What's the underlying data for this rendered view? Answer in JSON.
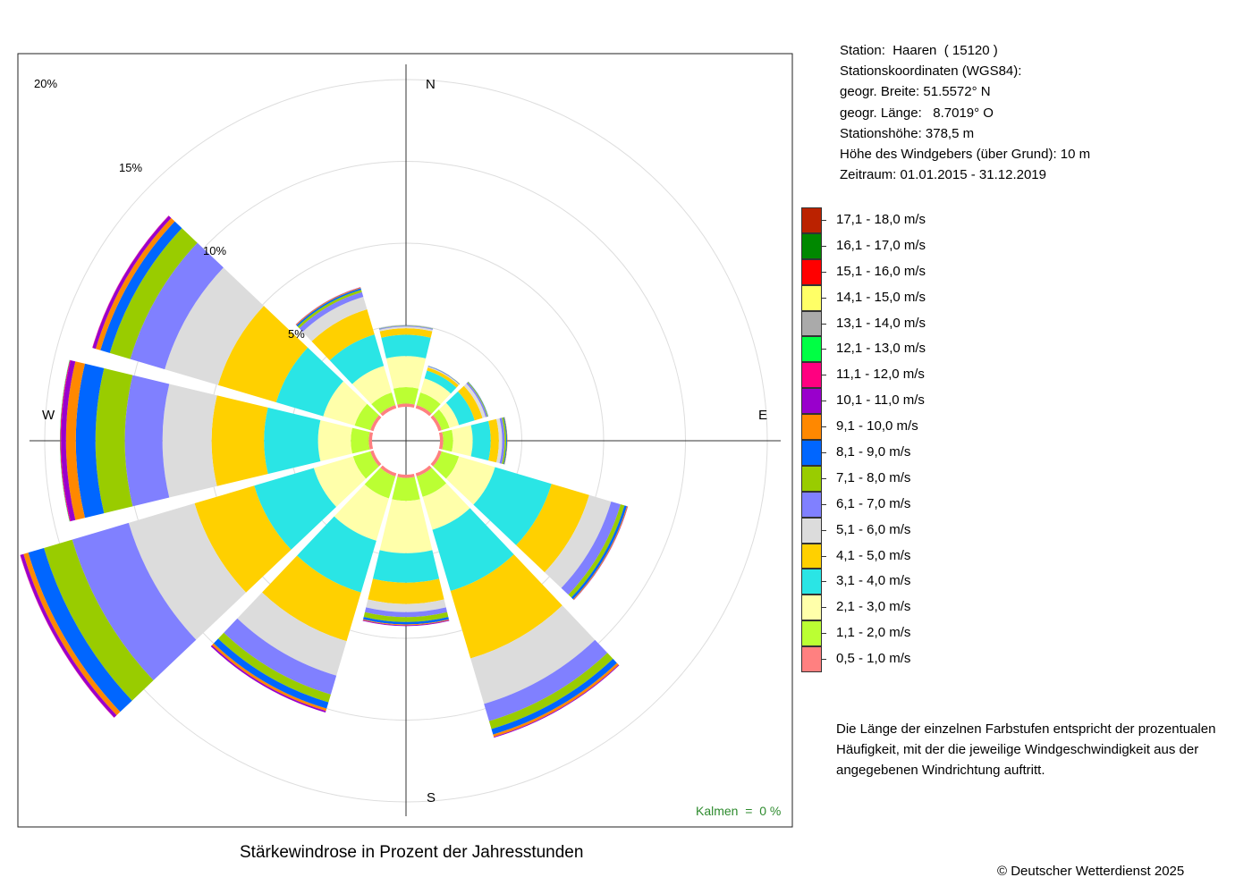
{
  "station": {
    "line1": "Station:  Haaren  ( 15120 )",
    "line2": "Stationskoordinaten (WGS84):",
    "line3": "geogr. Breite: 51.5572° N",
    "line4": "geogr. Länge:   8.7019° O",
    "line5": "Stationshöhe: 378,5 m",
    "line6": "Höhe des Windgebers (über Grund): 10 m",
    "line7": "Zeitraum: 01.01.2015 - 31.12.2019"
  },
  "note": "Die Länge der einzelnen Farbstufen entspricht der prozentualen Häufigkeit, mit der die jeweilige Windgeschwindigkeit aus der angegebenen Windrichtung auftritt.",
  "footer": {
    "caption": "Stärkewindrose in Prozent der Jahresstunden",
    "copyright": "© Deutscher Wetterdienst  2025",
    "calm": "Kalmen  =  0 %"
  },
  "directions": {
    "n": "N",
    "e": "E",
    "s": "S",
    "w": "W"
  },
  "ring_labels": [
    "5%",
    "10%",
    "15%",
    "20%"
  ],
  "chart_data": {
    "type": "windrose",
    "title": "Stärkewindrose in Prozent der Jahresstunden",
    "radial_unit": "%",
    "rings": [
      5,
      10,
      15,
      20
    ],
    "calms_percent": 0,
    "sector_width_deg": 30,
    "directions_deg": [
      0,
      30,
      60,
      90,
      120,
      150,
      180,
      210,
      240,
      270,
      300,
      330
    ],
    "speed_classes": [
      "0,5 - 1,0 m/s",
      "1,1 - 2,0 m/s",
      "2,1 - 3,0 m/s",
      "3,1 - 4,0 m/s",
      "4,1 - 5,0 m/s",
      "5,1 - 6,0 m/s",
      "6,1 - 7,0 m/s",
      "7,1 - 8,0 m/s",
      "8,1 - 9,0 m/s",
      "9,1 - 10,0 m/s",
      "10,1 - 11,0 m/s",
      "11,1 - 12,0 m/s",
      "12,1 - 13,0 m/s",
      "13,1 - 14,0 m/s",
      "14,1 - 15,0 m/s",
      "15,1 - 16,0 m/s",
      "16,1 - 17,0 m/s",
      "17,1 - 18,0 m/s"
    ],
    "colors": [
      "#ff8080",
      "#bbff33",
      "#ffffaa",
      "#2ae5e5",
      "#ffd000",
      "#dcdcdc",
      "#8080ff",
      "#99cc00",
      "#0066ff",
      "#ff8800",
      "#9900cc",
      "#ff0080",
      "#00ff44",
      "#aaaaaa",
      "#ffff66",
      "#ff0000",
      "#008800",
      "#bb2200"
    ],
    "sectors": [
      {
        "dir": 0,
        "values": [
          0.2,
          1.0,
          1.9,
          1.3,
          0.4,
          0.1,
          0.05,
          0.02,
          0.01,
          0,
          0,
          0,
          0,
          0,
          0,
          0,
          0,
          0
        ]
      },
      {
        "dir": 30,
        "values": [
          0.2,
          0.8,
          0.9,
          0.5,
          0.2,
          0.05,
          0.03,
          0.02,
          0.01,
          0,
          0,
          0,
          0,
          0,
          0,
          0,
          0,
          0
        ]
      },
      {
        "dir": 60,
        "values": [
          0.2,
          0.5,
          0.6,
          1.0,
          0.5,
          0.2,
          0.1,
          0.05,
          0.02,
          0,
          0,
          0,
          0,
          0,
          0,
          0,
          0,
          0
        ]
      },
      {
        "dir": 90,
        "values": [
          0.2,
          0.6,
          1.2,
          1.1,
          0.5,
          0.2,
          0.15,
          0.1,
          0.05,
          0.02,
          0,
          0,
          0,
          0,
          0,
          0,
          0,
          0
        ]
      },
      {
        "dir": 120,
        "values": [
          0.2,
          1.1,
          2.3,
          3.6,
          2.4,
          1.4,
          0.6,
          0.25,
          0.15,
          0.05,
          0.02,
          0,
          0,
          0,
          0,
          0,
          0,
          0
        ]
      },
      {
        "dir": 150,
        "values": [
          0.2,
          1.3,
          2.1,
          3.9,
          4.3,
          2.9,
          1.1,
          0.5,
          0.35,
          0.15,
          0.05,
          0,
          0,
          0,
          0,
          0,
          0,
          0
        ]
      },
      {
        "dir": 180,
        "values": [
          0.2,
          1.4,
          3.2,
          1.8,
          1.3,
          0.5,
          0.3,
          0.3,
          0.15,
          0.05,
          0.05,
          0,
          0,
          0,
          0,
          0,
          0,
          0
        ]
      },
      {
        "dir": 210,
        "values": [
          0.2,
          1.4,
          2.7,
          3.3,
          3.1,
          2.2,
          1.2,
          0.5,
          0.4,
          0.15,
          0.1,
          0,
          0,
          0,
          0,
          0,
          0,
          0
        ]
      },
      {
        "dir": 240,
        "values": [
          0.2,
          1.1,
          2.5,
          3.8,
          3.8,
          4.2,
          3.6,
          1.8,
          1.0,
          0.3,
          0.2,
          0.02,
          0,
          0,
          0,
          0,
          0,
          0
        ]
      },
      {
        "dir": 270,
        "values": [
          0.2,
          1.1,
          2.0,
          3.3,
          3.2,
          3.0,
          2.3,
          1.8,
          1.2,
          0.6,
          0.3,
          0.05,
          0.02,
          0,
          0,
          0,
          0,
          0
        ]
      },
      {
        "dir": 300,
        "values": [
          0.2,
          1.0,
          2.0,
          3.0,
          3.7,
          3.4,
          2.2,
          1.3,
          0.6,
          0.3,
          0.2,
          0.02,
          0,
          0,
          0,
          0,
          0,
          0
        ]
      },
      {
        "dir": 330,
        "values": [
          0.2,
          0.8,
          1.7,
          2.0,
          1.6,
          0.8,
          0.3,
          0.15,
          0.1,
          0.05,
          0.02,
          0,
          0,
          0,
          0,
          0,
          0,
          0
        ]
      }
    ]
  }
}
